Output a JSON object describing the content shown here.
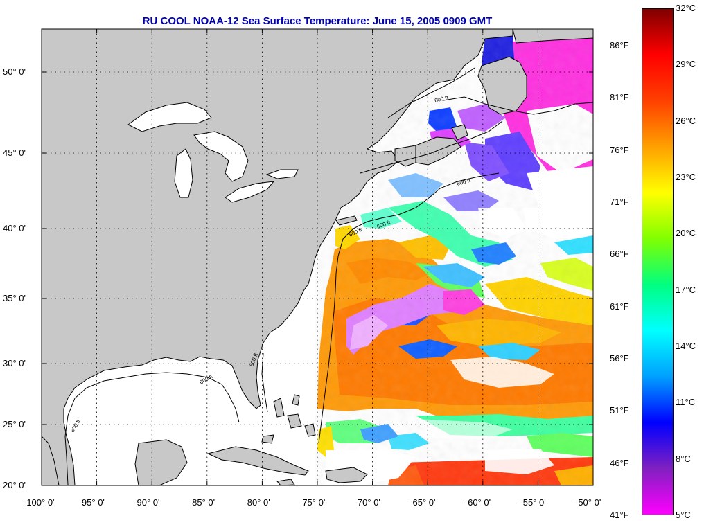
{
  "title": "RU COOL  NOAA-12  Sea Surface Temperature:  June 15, 2005 0909 GMT",
  "map": {
    "lon_range": [
      -100,
      -50
    ],
    "lat_range": [
      20,
      52.3
    ],
    "lon_ticks": [
      "-100° 0'",
      "-95° 0'",
      "-90° 0'",
      "-85° 0'",
      "-80° 0'",
      "-75° 0'",
      "-70° 0'",
      "-65° 0'",
      "-60° 0'",
      "-55° 0'",
      "-50° 0'"
    ],
    "lat_ticks": [
      "20° 0'",
      "25° 0'",
      "30° 0'",
      "35° 0'",
      "40° 0'",
      "45° 0'",
      "50° 0'"
    ],
    "grid": "dotted",
    "land_color": "#c8c8c8",
    "no_data_color": "#ffffff",
    "contour_label": "600 ft",
    "contour_labels": [
      "600 ft",
      "600 ft",
      "600 ft",
      "600 ft",
      "600 ft",
      "600 ft",
      "600 ft"
    ]
  },
  "colorbar": {
    "celsius_labels": [
      "32°C",
      "29°C",
      "26°C",
      "23°C",
      "20°C",
      "17°C",
      "14°C",
      "11°C",
      "8°C",
      "5°C"
    ],
    "fahrenheit_labels": [
      "86°F",
      "81°F",
      "76°F",
      "71°F",
      "66°F",
      "61°F",
      "56°F",
      "51°F",
      "46°F",
      "41°F"
    ],
    "range_c": [
      5,
      32
    ],
    "colors": [
      "#ff00ff",
      "#8020c0",
      "#0000ff",
      "#00a0ff",
      "#00ffff",
      "#00ff80",
      "#80ff00",
      "#ffff00",
      "#ffa000",
      "#ff4000",
      "#ff0000",
      "#800000"
    ]
  }
}
